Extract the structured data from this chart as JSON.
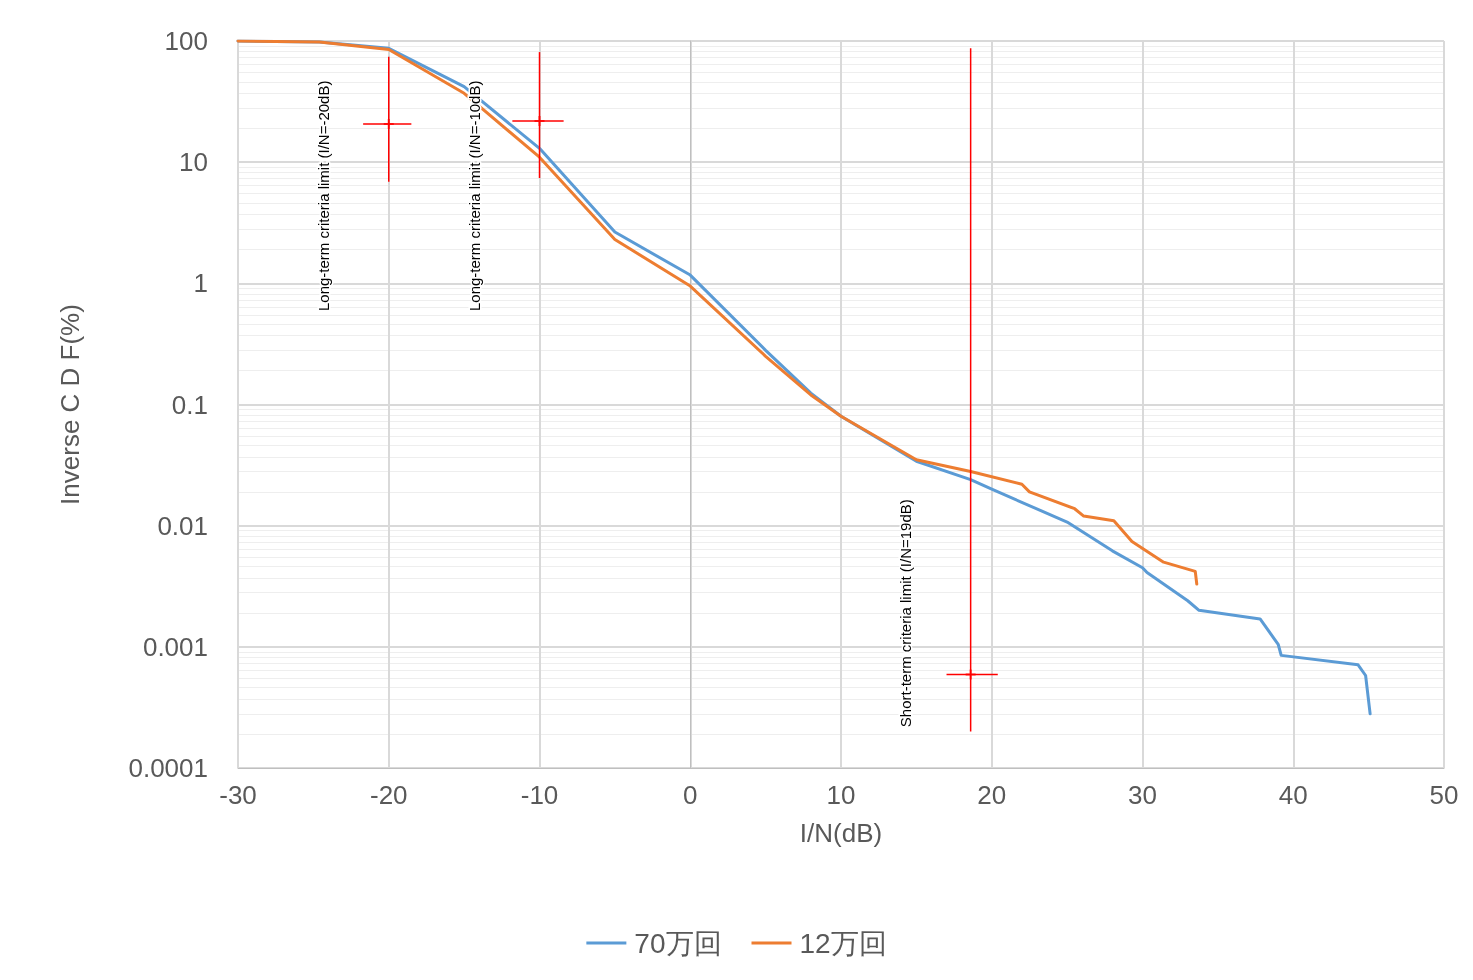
{
  "chart_data": {
    "type": "line",
    "xlabel": "I/N(dB)",
    "ylabel": "Inverse C D F(%)",
    "log": "y",
    "grid": true,
    "legend": "bottom",
    "marker": "none",
    "line_style": "solid",
    "xlim": [
      -30,
      50
    ],
    "xticks": [
      -30,
      -20,
      -10,
      0,
      10,
      20,
      30,
      40,
      50
    ],
    "ylim": [
      0.0001,
      100
    ],
    "yticks": [
      0.0001,
      0.001,
      0.01,
      0.1,
      1,
      10,
      100
    ],
    "series": [
      {
        "name": "70万回",
        "color": "#5b9bd5",
        "x": [
          -30,
          -24.6,
          -20,
          -15,
          -10,
          -5,
          0,
          5,
          8,
          10,
          15,
          18.6,
          20,
          25,
          28,
          30,
          30.3,
          33,
          33.75,
          37.8,
          39,
          39.2,
          44.3,
          44.8,
          45.1
        ],
        "values": [
          100,
          98,
          87,
          42,
          13,
          2.65,
          1.17,
          0.28,
          0.124,
          0.08,
          0.034,
          0.024,
          0.02,
          0.0107,
          0.0062,
          0.0045,
          0.0041,
          0.0024,
          0.002,
          0.0017,
          0.00105,
          0.00085,
          0.00071,
          0.00058,
          0.00028
        ]
      },
      {
        "name": "12万回",
        "color": "#ed7d31",
        "x": [
          -30,
          -24.6,
          -20,
          -15,
          -10,
          -5,
          0,
          5,
          8,
          10,
          15,
          18.6,
          22,
          22.5,
          25.5,
          26.1,
          28.1,
          29.3,
          31.4,
          33.5,
          33.6
        ],
        "values": [
          100,
          98,
          85,
          37,
          11,
          2.3,
          0.95,
          0.25,
          0.12,
          0.08,
          0.035,
          0.028,
          0.022,
          0.019,
          0.0138,
          0.012,
          0.011,
          0.0074,
          0.005,
          0.0042,
          0.0033
        ]
      },
      {
        "type": "scatter",
        "marker": "cross",
        "color": "#ff0000",
        "x": [
          -20,
          -10,
          18.6
        ],
        "values": [
          20.7,
          21.9,
          0.00059
        ],
        "errors": [
          [
            6.9,
            74
          ],
          [
            7.4,
            81
          ],
          [
            0.0002,
            87
          ]
        ],
        "xerrors": [
          [
            -21.7,
            -18.5
          ],
          [
            -11.8,
            -8.4
          ],
          [
            17,
            20.4
          ]
        ]
      }
    ],
    "annotations": [
      "Long-term criteria limit (I/N=-20dB)",
      "Long-term criteria limit (I/N=-10dB)",
      "Short-term criteria limit (I/N=19dB)"
    ]
  }
}
